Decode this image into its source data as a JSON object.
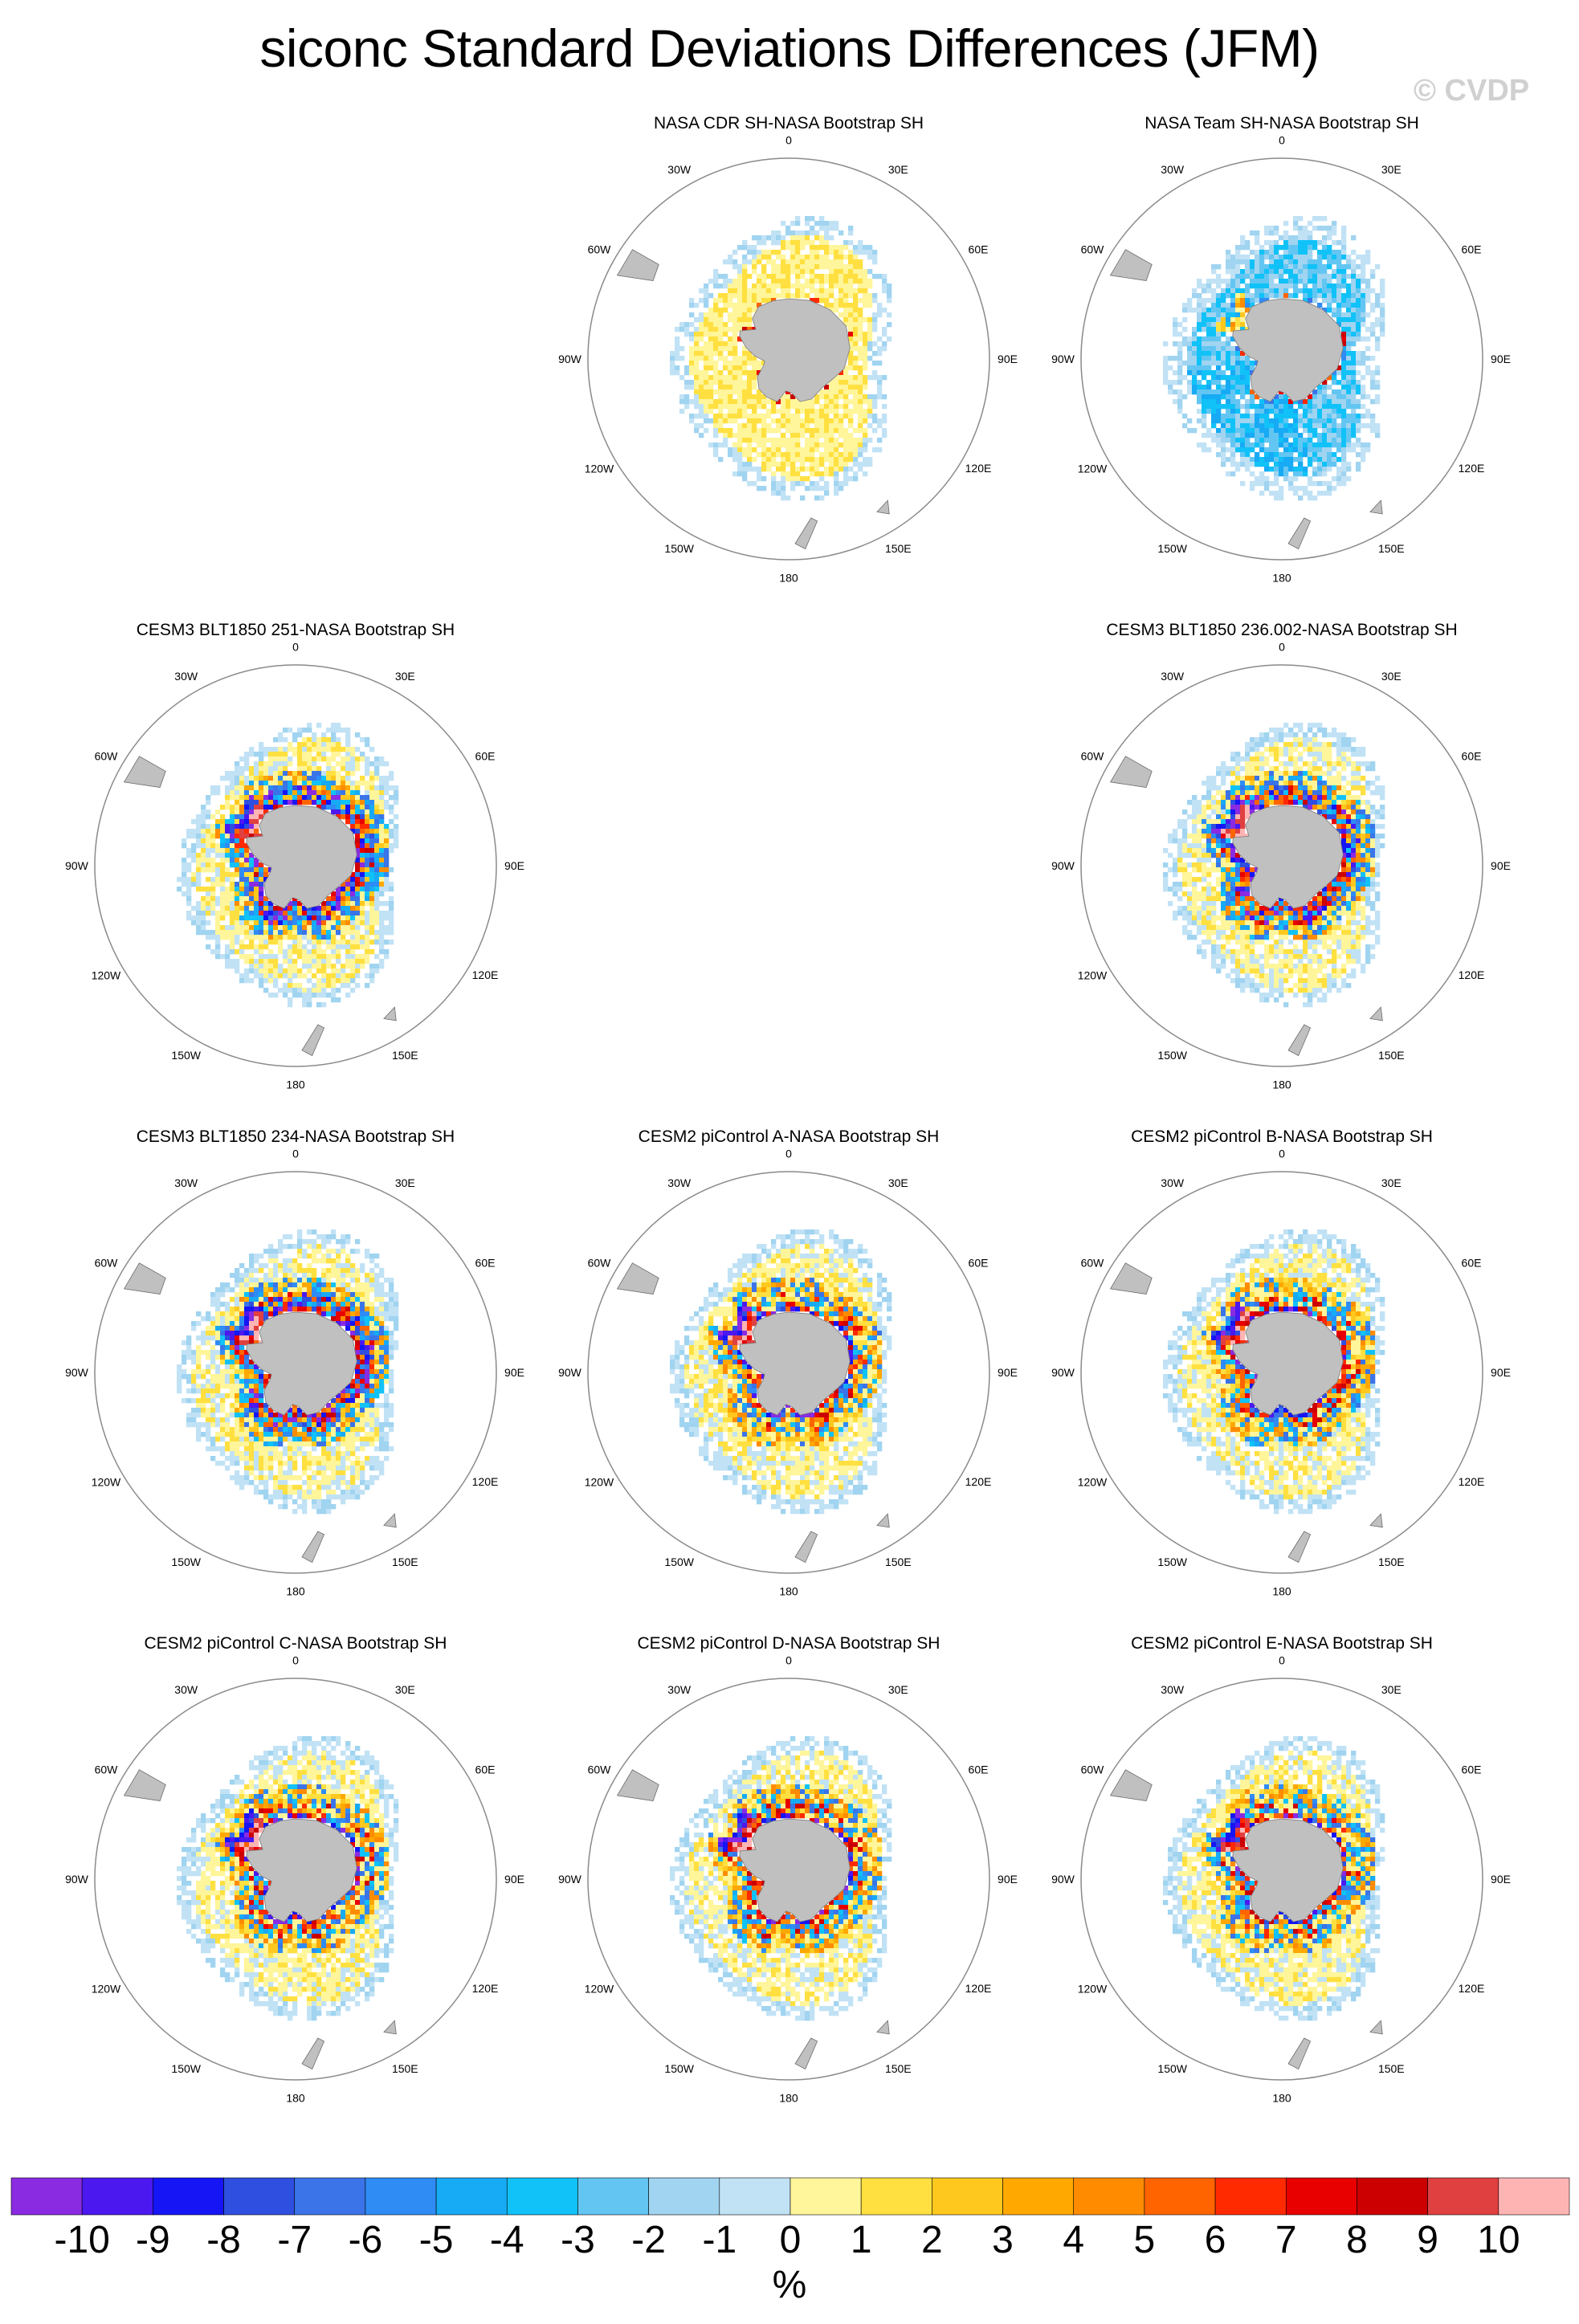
{
  "title": "siconc Standard Deviations Differences (JFM)",
  "watermark": "© CVDP",
  "colors": {
    "land": "#c0c0c0",
    "circle": "#8a8a8a"
  },
  "lon_labels": [
    "0",
    "30E",
    "60E",
    "90E",
    "120E",
    "150E",
    "180",
    "150W",
    "120W",
    "90W",
    "60W",
    "30W"
  ],
  "chart_data": {
    "type": "heatmap",
    "projection": "south-polar-stereographic",
    "variable": "siconc",
    "statistic": "Standard Deviations Differences",
    "season": "JFM",
    "panels": [
      {
        "id": "cdr",
        "title": "NASA CDR SH-NASA Bootstrap SH",
        "pattern": "obs_cdr"
      },
      {
        "id": "team",
        "title": "NASA Team SH-NASA Bootstrap SH",
        "pattern": "obs_team"
      },
      {
        "id": "blt251",
        "title": "CESM3 BLT1850 251-NASA Bootstrap SH",
        "pattern": "cesm3_a"
      },
      {
        "id": "blt236",
        "title": "CESM3 BLT1850 236.002-NASA Bootstrap SH",
        "pattern": "cesm3_b"
      },
      {
        "id": "blt234",
        "title": "CESM3 BLT1850 234-NASA Bootstrap SH",
        "pattern": "cesm3_c"
      },
      {
        "id": "picA",
        "title": "CESM2 piControl A-NASA Bootstrap SH",
        "pattern": "cesm2_a"
      },
      {
        "id": "picB",
        "title": "CESM2 piControl B-NASA Bootstrap SH",
        "pattern": "cesm2_b"
      },
      {
        "id": "picC",
        "title": "CESM2 piControl C-NASA Bootstrap SH",
        "pattern": "cesm2_c"
      },
      {
        "id": "picD",
        "title": "CESM2 piControl D-NASA Bootstrap SH",
        "pattern": "cesm2_d"
      },
      {
        "id": "picE",
        "title": "CESM2 piControl E-NASA Bootstrap SH",
        "pattern": "cesm2_e"
      }
    ],
    "colorbar": {
      "unit": "%",
      "tick_labels": [
        "-10",
        "-9",
        "-8",
        "-7",
        "-6",
        "-5",
        "-4",
        "-3",
        "-2",
        "-1",
        "0",
        "1",
        "2",
        "3",
        "4",
        "5",
        "6",
        "7",
        "8",
        "9",
        "10"
      ],
      "colors": [
        "#8a2be2",
        "#4b18f0",
        "#1515f5",
        "#2e4fe0",
        "#3a74e8",
        "#2f8cf5",
        "#17aaf5",
        "#10c2f8",
        "#63c6f2",
        "#a0d4f0",
        "#c1e2f5",
        "#fff59a",
        "#ffe040",
        "#ffc81e",
        "#ffa800",
        "#ff8c00",
        "#ff6400",
        "#ff2a00",
        "#e80000",
        "#cc0000",
        "#e04040",
        "#ffb4b4"
      ]
    }
  }
}
